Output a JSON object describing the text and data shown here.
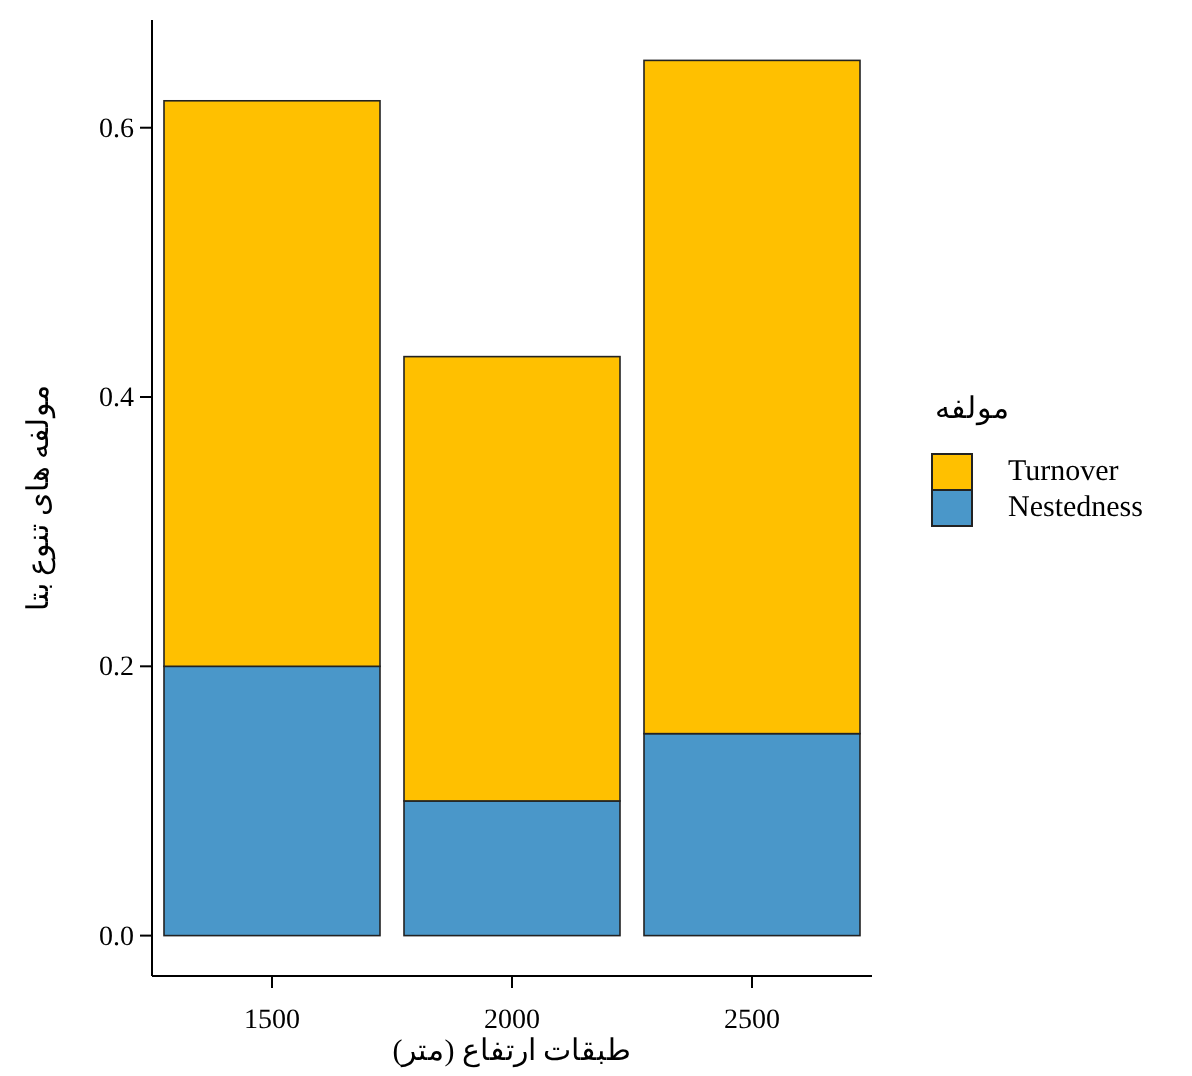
{
  "chart_data": {
    "type": "bar",
    "stacked": true,
    "xlabel": "طبقات ارتفاع (متر)",
    "ylabel": "مولفه های تنوع بتا",
    "legend_title": "مولفه",
    "legend": "right",
    "categories": [
      "1500",
      "2000",
      "2500"
    ],
    "series": [
      {
        "name": "Nestedness",
        "color": "#4a97c9",
        "values": [
          0.2,
          0.1,
          0.15
        ]
      },
      {
        "name": "Turnover",
        "color": "#ffc000",
        "values": [
          0.42,
          0.33,
          0.5
        ]
      }
    ],
    "ylim": [
      -0.03,
      0.68
    ],
    "yticks": [
      {
        "value": 0,
        "label": "0.0"
      },
      {
        "value": 0.2,
        "label": "0.2"
      },
      {
        "value": 0.4,
        "label": "0.4"
      },
      {
        "value": 0.6,
        "label": "0.6"
      }
    ]
  }
}
